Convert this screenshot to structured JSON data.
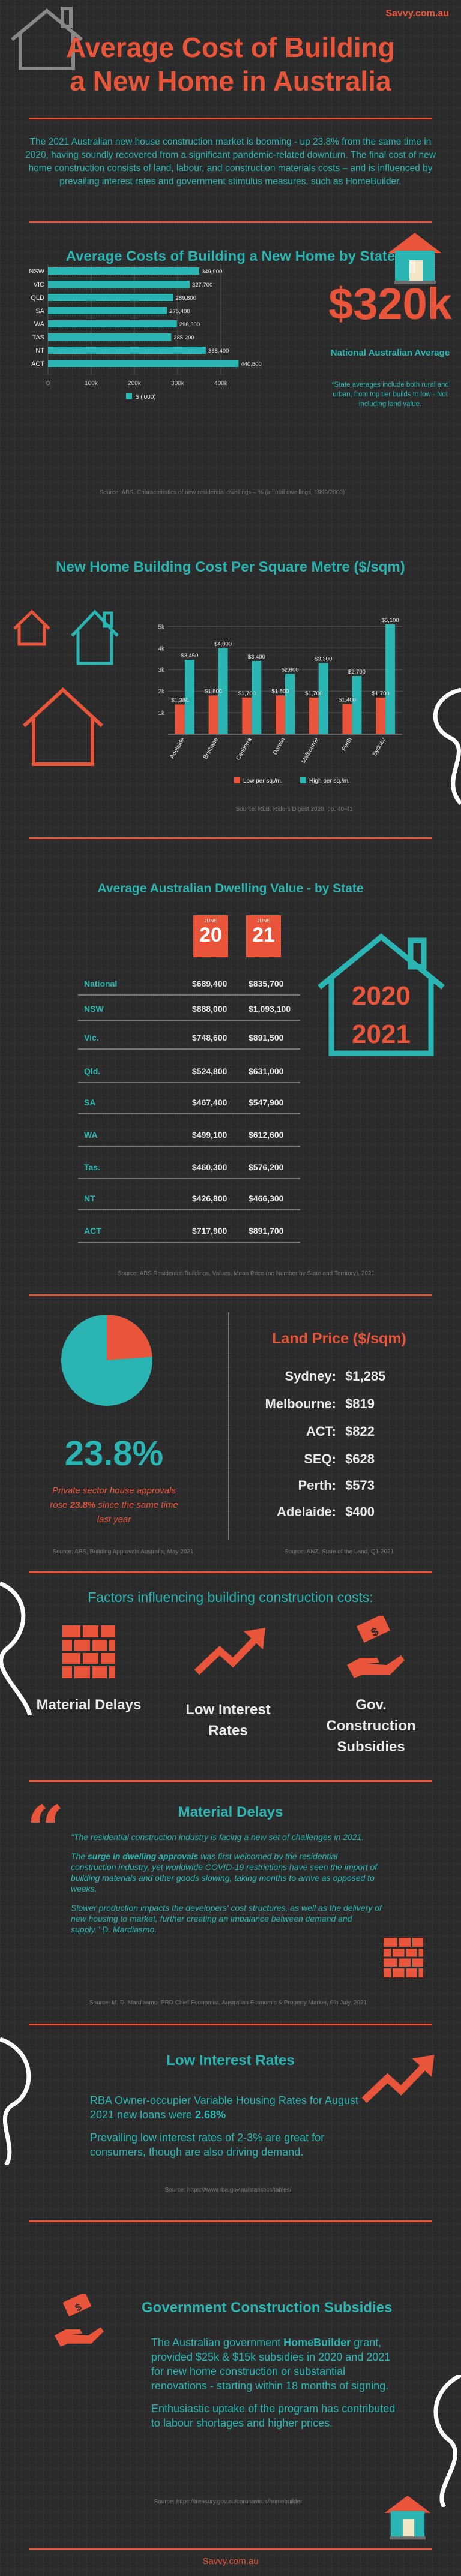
{
  "header": {
    "site": "Savvy.com.au",
    "title_line1": "Average Cost of Building",
    "title_line2": "a New Home in Australia",
    "intro": "The 2021 Australian new house construction market is booming - up 23.8% from the same time in 2020, having soundly recovered from a significant pandemic-related downturn. The final cost of new home construction consists of land, labour, and construction materials costs – and is influenced by prevailing interest rates and government stimulus measures, such as HomeBuilder."
  },
  "section1": {
    "title": "Average Costs of Building a New Home by State",
    "big_value": "$320k",
    "big_label": "National Australian Average",
    "note": "*State averages include both rural and urban, from top tier builds to low - Not including land value.",
    "source": "Source: ABS, Characteristics of new residential dwellings – % (in total dwellings, 1999/2000)"
  },
  "section2": {
    "title": "New Home Building Cost Per Square Metre ($/sqm)",
    "source": "Source: RLB, Riders Digest 2020, pp. 40-41"
  },
  "section3": {
    "title": "Average Australian Dwelling Value - by State",
    "badge_month": "JUNE",
    "badge_2020": "20",
    "badge_2021": "21",
    "house_year1": "2020",
    "house_year2": "2021",
    "rows": [
      {
        "state": "National",
        "v2020": "$689,400",
        "v2021": "$835,700"
      },
      {
        "state": "NSW",
        "v2020": "$888,000",
        "v2021": "$1,093,100"
      },
      {
        "state": "Vic.",
        "v2020": "$748,600",
        "v2021": "$891,500"
      },
      {
        "state": "Qld.",
        "v2020": "$524,800",
        "v2021": "$631,000"
      },
      {
        "state": "SA",
        "v2020": "$467,400",
        "v2021": "$547,900"
      },
      {
        "state": "WA",
        "v2020": "$499,100",
        "v2021": "$612,600"
      },
      {
        "state": "Tas.",
        "v2020": "$460,300",
        "v2021": "$576,200"
      },
      {
        "state": "NT",
        "v2020": "$426,800",
        "v2021": "$466,300"
      },
      {
        "state": "ACT",
        "v2020": "$717,900",
        "v2021": "$891,700"
      }
    ],
    "source": "Source: ABS Residential Buildings, Values, Mean Price (no Number by State and Territory), 2021"
  },
  "section4": {
    "pie_value": "23.8%",
    "pie_caption_1": "Private sector house approvals",
    "pie_caption_2": "rose",
    "pie_caption_bold": "23.8%",
    "pie_caption_3": "since the same time last year",
    "pie_fraction": 0.238,
    "land_title": "Land Price ($/sqm)",
    "land": [
      {
        "city": "Sydney:",
        "value": "$1,285"
      },
      {
        "city": "Melbourne:",
        "value": "$819"
      },
      {
        "city": "ACT:",
        "value": "$822"
      },
      {
        "city": "SEQ:",
        "value": "$628"
      },
      {
        "city": "Perth:",
        "value": "$573"
      },
      {
        "city": "Adelaide:",
        "value": "$400"
      }
    ],
    "source_left": "Source: ABS, Building Approvals Australia, May 2021",
    "source_right": "Source: ANZ, State of the Land, Q1 2021"
  },
  "section5": {
    "title": "Factors influencing building construction costs:",
    "factor1": "Material Delays",
    "factor2": "Low Interest Rates",
    "factor3": "Gov. Construction Subsidies"
  },
  "section6": {
    "title": "Material Delays",
    "quote1": "\"The residential construction industry is facing a new set of challenges in 2021.",
    "quote2_pre": "The",
    "quote2_bold": "surge in dwelling approvals",
    "quote2_post": "was first welcomed by the residential construction industry, yet worldwide COVID-19 restrictions have seen the import of building materials and other goods slowing, taking months to arrive as opposed to weeks.",
    "quote3": "Slower production impacts the developers' cost structures, as well as the delivery of new housing to market, further creating an imbalance between demand and supply.\" D. Mardiasmo.",
    "source": "Source: M. D. Mardiasmo, PRD Chief Economist, Australian Economic & Property Market, 6th July, 2021"
  },
  "section7": {
    "title": "Low Interest Rates",
    "p1_pre": "RBA Owner-occupier Variable Housing Rates for August 2021 new loans were",
    "p1_bold": "2.68%",
    "p2": "Prevailing low interest rates of 2-3% are great for consumers, though are also driving demand.",
    "source": "Source: https://www.rba.gov.au/statistics/tables/"
  },
  "section8": {
    "title": "Government Construction Subsidies",
    "p1_pre": "The Australian government",
    "p1_bold": "HomeBuilder",
    "p1_post": "grant, provided $25k & $15k subsidies in 2020 and 2021 for new home construction or substantial renovations - starting within 18 months of signing.",
    "p2": "Enthusiastic uptake of the program has contributed to labour shortages and higher prices.",
    "source": "Source: https://treasury.gov.au/coronavirus/homebuilder"
  },
  "footer": {
    "site": "Savvy.com.au"
  },
  "colors": {
    "accent": "#e8553a",
    "teal": "#2bb5b2",
    "background": "#2b2b2b"
  },
  "chart_data": [
    {
      "type": "bar",
      "orientation": "horizontal",
      "categories": [
        "NSW",
        "VIC",
        "QLD",
        "SA",
        "WA",
        "TAS",
        "NT",
        "ACT"
      ],
      "series": [
        {
          "name": "$ ('000)",
          "values": [
            349.9,
            327.7,
            289.8,
            275.4,
            298.3,
            285.2,
            365.4,
            440.8
          ]
        }
      ],
      "value_labels": [
        "349,900",
        "327,700",
        "289,800",
        "275,400",
        "298,300",
        "285,200",
        "365,400",
        "440,800"
      ],
      "xticks": [
        "0",
        "100k",
        "200k",
        "300k",
        "400k"
      ],
      "xlim": [
        0,
        500
      ]
    },
    {
      "type": "bar",
      "categories": [
        "Adelaide",
        "Brisbane",
        "Canberra",
        "Darwin",
        "Melbourne",
        "Perth",
        "Sydney"
      ],
      "series": [
        {
          "name": "Low per sq./m.",
          "values": [
            1.38,
            1.8,
            1.7,
            1.8,
            1.7,
            1.4,
            1.7
          ]
        },
        {
          "name": "High per sq./m.",
          "values": [
            3.45,
            4.0,
            3.4,
            2.8,
            3.3,
            2.7,
            5.1
          ]
        }
      ],
      "labels_low": [
        "$1,380",
        "$1,800",
        "$1,700",
        "$1,800",
        "$1,700",
        "$1,400",
        "$1,700"
      ],
      "labels_high": [
        "$3,450",
        "$4,000",
        "$3,400",
        "$2,800",
        "$3,300",
        "$2,700",
        "$5,100"
      ],
      "yticks": [
        "1k",
        "2k",
        "3k",
        "4k",
        "5k"
      ],
      "ylim": [
        0,
        5.4
      ]
    }
  ]
}
